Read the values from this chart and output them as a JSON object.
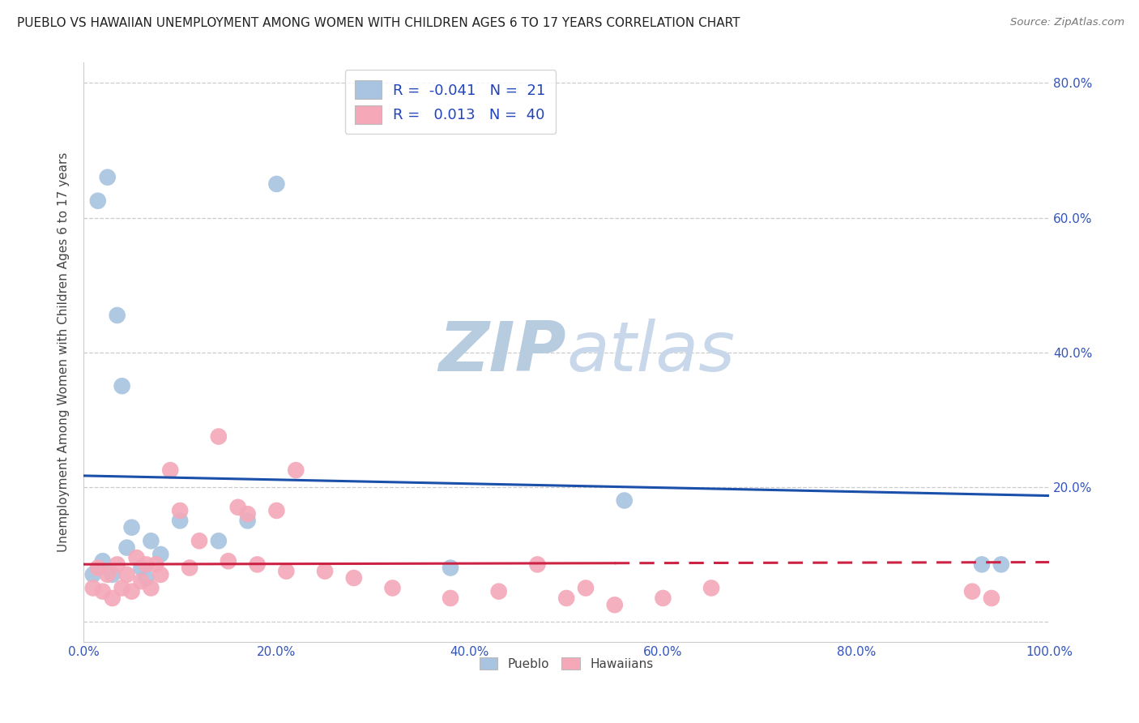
{
  "title": "PUEBLO VS HAWAIIAN UNEMPLOYMENT AMONG WOMEN WITH CHILDREN AGES 6 TO 17 YEARS CORRELATION CHART",
  "source": "Source: ZipAtlas.com",
  "ylabel": "Unemployment Among Women with Children Ages 6 to 17 years",
  "xlim": [
    0,
    100
  ],
  "ylim": [
    -3,
    83
  ],
  "xticks": [
    0,
    20,
    40,
    60,
    80,
    100
  ],
  "xticklabels": [
    "0.0%",
    "20.0%",
    "40.0%",
    "60.0%",
    "80.0%",
    "100.0%"
  ],
  "ytick_vals": [
    0,
    20,
    40,
    60,
    80
  ],
  "yticklabels": [
    "",
    "20.0%",
    "40.0%",
    "60.0%",
    "80.0%"
  ],
  "pueblo_R": -0.041,
  "pueblo_N": 21,
  "hawaiian_R": 0.013,
  "hawaiian_N": 40,
  "pueblo_color": "#a8c4e0",
  "pueblo_line_color": "#1a4faa",
  "hawaiian_color": "#f4a8b8",
  "hawaiian_line_color": "#cc2244",
  "hawaiian_line_solid_end": 55,
  "watermark_zip": "ZIP",
  "watermark_atlas": "atlas",
  "watermark_color": "#ccd8ea",
  "bg_color": "#ffffff",
  "tick_color": "#3355bb",
  "pueblo_x": [
    1.5,
    2.5,
    3.5,
    4.0,
    5.0,
    6.0,
    7.0,
    8.0,
    10.0,
    14.0,
    17.0,
    20.0,
    38.0,
    56.0,
    93.0,
    95.0,
    1.0,
    2.0,
    3.0,
    4.5,
    6.5
  ],
  "pueblo_y": [
    62.5,
    66.0,
    45.5,
    35.0,
    14.0,
    8.0,
    12.0,
    10.0,
    15.0,
    12.0,
    15.0,
    65.0,
    8.0,
    18.0,
    8.5,
    8.5,
    7.0,
    9.0,
    7.0,
    11.0,
    6.5
  ],
  "hawaiian_x": [
    1.0,
    1.5,
    2.0,
    2.5,
    3.0,
    3.5,
    4.0,
    4.5,
    5.0,
    5.5,
    6.0,
    6.5,
    7.0,
    7.5,
    8.0,
    9.0,
    10.0,
    11.0,
    12.0,
    14.0,
    15.0,
    16.0,
    17.0,
    18.0,
    20.0,
    21.0,
    22.0,
    25.0,
    28.0,
    32.0,
    38.0,
    43.0,
    50.0,
    52.0,
    55.0,
    60.0,
    65.0,
    92.0,
    94.0,
    47.0
  ],
  "hawaiian_y": [
    5.0,
    8.0,
    4.5,
    7.0,
    3.5,
    8.5,
    5.0,
    7.0,
    4.5,
    9.5,
    6.0,
    8.5,
    5.0,
    8.5,
    7.0,
    22.5,
    16.5,
    8.0,
    12.0,
    27.5,
    9.0,
    17.0,
    16.0,
    8.5,
    16.5,
    7.5,
    22.5,
    7.5,
    6.5,
    5.0,
    3.5,
    4.5,
    3.5,
    5.0,
    2.5,
    3.5,
    5.0,
    4.5,
    3.5,
    8.5
  ]
}
